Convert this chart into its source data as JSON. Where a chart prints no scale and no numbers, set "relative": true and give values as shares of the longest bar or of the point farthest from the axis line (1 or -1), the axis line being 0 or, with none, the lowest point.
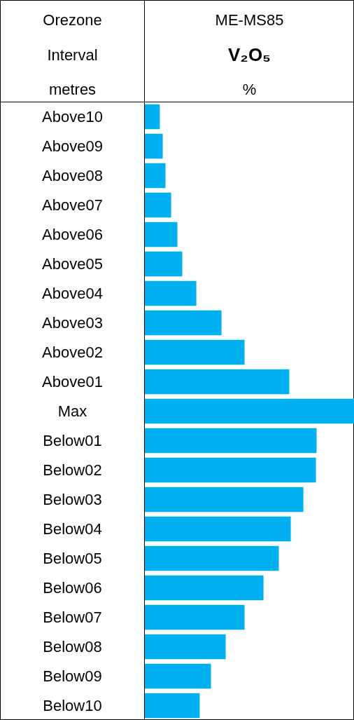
{
  "chart_data": {
    "type": "bar",
    "orientation": "horizontal",
    "relative": true,
    "title": "ME-MS85",
    "subtitle": "V₂O₅",
    "xlabel": "%",
    "ylabel": "Orezone Interval metres",
    "categories": [
      "Above10",
      "Above09",
      "Above08",
      "Above07",
      "Above06",
      "Above05",
      "Above04",
      "Above03",
      "Above02",
      "Above01",
      "Max",
      "Below01",
      "Below02",
      "Below03",
      "Below04",
      "Below05",
      "Below06",
      "Below07",
      "Below08",
      "Below09",
      "Below10"
    ],
    "values": [
      0.073,
      0.087,
      0.1,
      0.127,
      0.157,
      0.18,
      0.247,
      0.367,
      0.477,
      0.69,
      1,
      0.82,
      0.817,
      0.757,
      0.697,
      0.64,
      0.567,
      0.477,
      0.387,
      0.317,
      0.263
    ],
    "color": "#00b0f0"
  }
}
